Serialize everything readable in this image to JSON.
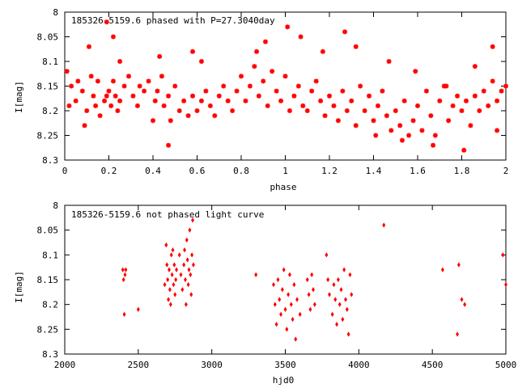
{
  "chart_data": [
    {
      "type": "scatter",
      "title": "185326-5159.6 phased with P=27.3040day",
      "xlabel": "phase",
      "ylabel": "I[mag]",
      "xlim": [
        0,
        2
      ],
      "ylim": [
        8,
        8.3
      ],
      "y_inverted": true,
      "grid": false,
      "legend": "none",
      "color": "#ff0000",
      "marker": "star",
      "x_ticks": [
        "0",
        "0.2",
        "0.4",
        "0.6",
        "0.8",
        "1",
        "1.2",
        "1.4",
        "1.6",
        "1.8",
        "2"
      ],
      "y_ticks": [
        "8",
        "8.05",
        "8.1",
        "8.15",
        "8.2",
        "8.25",
        "8.3"
      ],
      "x": [
        0.01,
        0.02,
        0.03,
        0.05,
        0.06,
        0.08,
        0.09,
        0.1,
        0.12,
        0.13,
        0.14,
        0.15,
        0.16,
        0.18,
        0.19,
        0.2,
        0.21,
        0.22,
        0.23,
        0.24,
        0.25,
        0.27,
        0.29,
        0.31,
        0.33,
        0.34,
        0.36,
        0.38,
        0.4,
        0.41,
        0.42,
        0.44,
        0.45,
        0.47,
        0.48,
        0.5,
        0.52,
        0.54,
        0.56,
        0.58,
        0.6,
        0.62,
        0.64,
        0.66,
        0.68,
        0.7,
        0.72,
        0.74,
        0.76,
        0.78,
        0.8,
        0.82,
        0.84,
        0.86,
        0.88,
        0.9,
        0.92,
        0.94,
        0.96,
        0.98,
        1.0,
        1.02,
        1.04,
        1.06,
        1.08,
        1.1,
        1.12,
        1.14,
        1.16,
        1.18,
        1.2,
        1.22,
        1.24,
        1.26,
        1.28,
        1.3,
        1.32,
        1.34,
        1.36,
        1.38,
        1.4,
        1.42,
        1.44,
        1.46,
        1.48,
        1.5,
        1.52,
        1.54,
        1.56,
        1.58,
        1.6,
        1.62,
        1.64,
        1.66,
        1.68,
        1.7,
        1.72,
        1.74,
        1.76,
        1.78,
        1.8,
        1.82,
        1.84,
        1.86,
        1.88,
        1.9,
        1.92,
        1.94,
        1.96,
        1.98,
        2.0,
        0.19,
        0.22,
        0.11,
        0.25,
        0.47,
        0.43,
        0.58,
        0.62,
        0.87,
        0.91,
        1.01,
        1.07,
        1.17,
        1.27,
        1.32,
        1.41,
        1.47,
        1.53,
        1.59,
        1.67,
        1.73,
        1.81,
        1.86,
        1.94,
        1.96
      ],
      "y": [
        8.12,
        8.19,
        8.15,
        8.18,
        8.14,
        8.16,
        8.23,
        8.2,
        8.13,
        8.17,
        8.19,
        8.14,
        8.21,
        8.18,
        8.17,
        8.16,
        8.19,
        8.14,
        8.17,
        8.2,
        8.18,
        8.15,
        8.13,
        8.17,
        8.19,
        8.15,
        8.16,
        8.14,
        8.22,
        8.18,
        8.16,
        8.13,
        8.19,
        8.17,
        8.22,
        8.15,
        8.2,
        8.18,
        8.21,
        8.17,
        8.2,
        8.18,
        8.16,
        8.19,
        8.21,
        8.17,
        8.15,
        8.18,
        8.2,
        8.16,
        8.13,
        8.18,
        8.15,
        8.11,
        8.17,
        8.14,
        8.19,
        8.12,
        8.16,
        8.18,
        8.13,
        8.2,
        8.17,
        8.15,
        8.19,
        8.2,
        8.16,
        8.14,
        8.18,
        8.21,
        8.17,
        8.19,
        8.22,
        8.16,
        8.2,
        8.18,
        8.23,
        8.15,
        8.2,
        8.17,
        8.22,
        8.19,
        8.16,
        8.21,
        8.24,
        8.2,
        8.23,
        8.18,
        8.25,
        8.22,
        8.19,
        8.24,
        8.16,
        8.21,
        8.25,
        8.18,
        8.15,
        8.22,
        8.19,
        8.17,
        8.2,
        8.18,
        8.23,
        8.17,
        8.2,
        8.16,
        8.19,
        8.14,
        8.18,
        8.16,
        8.15,
        8.02,
        8.05,
        8.07,
        8.1,
        8.27,
        8.09,
        8.08,
        8.1,
        8.08,
        8.06,
        8.03,
        8.05,
        8.08,
        8.04,
        8.07,
        8.25,
        8.1,
        8.26,
        8.12,
        8.27,
        8.15,
        8.28,
        8.11,
        8.07,
        8.24
      ],
      "points_note": ""
    },
    {
      "type": "scatter",
      "title": "185326-5159.6 not phased light curve",
      "xlabel": "hjd0",
      "ylabel": "I[mag]",
      "xlim": [
        2000,
        5000
      ],
      "ylim": [
        8,
        8.3
      ],
      "y_inverted": true,
      "grid": false,
      "legend": "none",
      "color": "#ff0000",
      "marker": "diamond",
      "x_ticks": [
        "2000",
        "2500",
        "3000",
        "3500",
        "4000",
        "4500",
        "5000"
      ],
      "y_ticks": [
        "8",
        "8.05",
        "8.1",
        "8.15",
        "8.2",
        "8.25",
        "8.3"
      ],
      "x": [
        2395,
        2400,
        2405,
        2410,
        2415,
        2500,
        2680,
        2690,
        2695,
        2700,
        2705,
        2710,
        2715,
        2720,
        2725,
        2730,
        2735,
        2740,
        2745,
        2750,
        2755,
        2760,
        2780,
        2790,
        2800,
        2810,
        2815,
        2820,
        2825,
        2830,
        2835,
        2840,
        2845,
        2850,
        2855,
        2860,
        2865,
        2870,
        2875,
        3300,
        3420,
        3430,
        3440,
        3450,
        3460,
        3470,
        3480,
        3490,
        3500,
        3510,
        3520,
        3530,
        3540,
        3550,
        3560,
        3570,
        3580,
        3600,
        3650,
        3660,
        3670,
        3680,
        3690,
        3700,
        3780,
        3790,
        3800,
        3820,
        3830,
        3840,
        3850,
        3860,
        3870,
        3880,
        3890,
        3900,
        3910,
        3920,
        3930,
        3940,
        3950,
        4170,
        4570,
        4670,
        4680,
        4700,
        4720,
        4980,
        5000
      ],
      "y": [
        8.13,
        8.15,
        8.22,
        8.14,
        8.13,
        8.21,
        8.16,
        8.08,
        8.12,
        8.15,
        8.19,
        8.13,
        8.17,
        8.2,
        8.1,
        8.14,
        8.09,
        8.16,
        8.12,
        8.18,
        8.15,
        8.13,
        8.1,
        8.14,
        8.17,
        8.12,
        8.09,
        8.15,
        8.2,
        8.07,
        8.11,
        8.16,
        8.13,
        8.05,
        8.14,
        8.18,
        8.1,
        8.03,
        8.12,
        8.14,
        8.16,
        8.2,
        8.24,
        8.15,
        8.19,
        8.22,
        8.17,
        8.13,
        8.21,
        8.25,
        8.18,
        8.14,
        8.2,
        8.23,
        8.16,
        8.27,
        8.19,
        8.22,
        8.15,
        8.18,
        8.21,
        8.14,
        8.17,
        8.2,
        8.1,
        8.15,
        8.18,
        8.22,
        8.16,
        8.19,
        8.24,
        8.15,
        8.2,
        8.17,
        8.23,
        8.13,
        8.19,
        8.21,
        8.26,
        8.14,
        8.18,
        8.04,
        8.13,
        8.26,
        8.12,
        8.19,
        8.2,
        8.1,
        8.16
      ],
      "points_note": ""
    }
  ]
}
